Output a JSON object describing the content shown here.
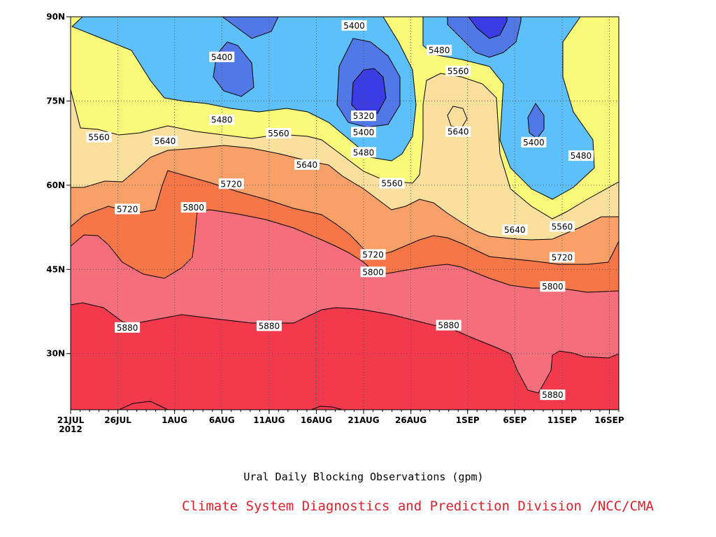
{
  "title": "Ural Daily Blocking Observations (gpm)",
  "credit": "Climate System Diagnostics and Prediction Division /NCC/CMA",
  "chart_data": {
    "type": "contour",
    "variable_unit": "gpm",
    "x_axis": {
      "start": "2012-07-21",
      "end": "2012-09-17",
      "tick_labels": [
        "21JUL",
        "26JUL",
        "1AUG",
        "6AUG",
        "11AUG",
        "16AUG",
        "21AUG",
        "26AUG",
        "1SEP",
        "6SEP",
        "11SEP",
        "16SEP"
      ],
      "tick_dates": [
        "2012-07-21",
        "2012-07-26",
        "2012-08-01",
        "2012-08-06",
        "2012-08-11",
        "2012-08-16",
        "2012-08-21",
        "2012-08-26",
        "2012-09-01",
        "2012-09-06",
        "2012-09-11",
        "2012-09-16"
      ],
      "year_label": "2012"
    },
    "y_axis": {
      "range": [
        20,
        90
      ],
      "ticks": [
        30,
        45,
        60,
        75,
        90
      ],
      "tick_labels": [
        "30N",
        "45N",
        "60N",
        "75N",
        "90N"
      ]
    },
    "grid": true,
    "levels": [
      5320,
      5400,
      5480,
      5560,
      5640,
      5720,
      5800,
      5880
    ],
    "fill_colors": {
      "lt5320": "#3c3ce4",
      "5320-5400": "#5078e6",
      "5400-5480": "#5ec0fa",
      "5480-5560": "#fafa7a",
      "5560-5640": "#fae09c",
      "5640-5720": "#f8a068",
      "5720-5800": "#f67648",
      "5800-5880": "#f46e7c",
      "gt5880": "#f23a4c"
    },
    "contour_labels": [
      {
        "value": "5400",
        "date": "2012-08-20",
        "lat": 88.4
      },
      {
        "value": "5400",
        "date": "2012-08-06",
        "lat": 82.8
      },
      {
        "value": "5480",
        "date": "2012-08-29",
        "lat": 84.0
      },
      {
        "value": "5560",
        "date": "2012-08-31",
        "lat": 80.3
      },
      {
        "value": "5320",
        "date": "2012-08-21",
        "lat": 72.3
      },
      {
        "value": "5480",
        "date": "2012-08-06",
        "lat": 71.6
      },
      {
        "value": "5400",
        "date": "2012-08-21",
        "lat": 69.4
      },
      {
        "value": "5640",
        "date": "2012-08-31",
        "lat": 69.5
      },
      {
        "value": "5560",
        "date": "2012-07-24",
        "lat": 68.5
      },
      {
        "value": "5560",
        "date": "2012-08-12",
        "lat": 69.2
      },
      {
        "value": "5400",
        "date": "2012-09-08",
        "lat": 67.6
      },
      {
        "value": "5640",
        "date": "2012-07-31",
        "lat": 67.8
      },
      {
        "value": "5480",
        "date": "2012-08-21",
        "lat": 65.8
      },
      {
        "value": "5480",
        "date": "2012-09-13",
        "lat": 65.2
      },
      {
        "value": "5640",
        "date": "2012-08-15",
        "lat": 63.6
      },
      {
        "value": "5720",
        "date": "2012-08-07",
        "lat": 60.2
      },
      {
        "value": "5560",
        "date": "2012-08-24",
        "lat": 60.3
      },
      {
        "value": "5720",
        "date": "2012-07-27",
        "lat": 55.7
      },
      {
        "value": "5800",
        "date": "2012-08-03",
        "lat": 56.0
      },
      {
        "value": "5640",
        "date": "2012-09-06",
        "lat": 52.0
      },
      {
        "value": "5560",
        "date": "2012-09-11",
        "lat": 52.6
      },
      {
        "value": "5720",
        "date": "2012-08-22",
        "lat": 47.6
      },
      {
        "value": "5720",
        "date": "2012-09-11",
        "lat": 47.1
      },
      {
        "value": "5800",
        "date": "2012-08-22",
        "lat": 44.5
      },
      {
        "value": "5800",
        "date": "2012-09-10",
        "lat": 41.9
      },
      {
        "value": "5880",
        "date": "2012-07-27",
        "lat": 34.6
      },
      {
        "value": "5880",
        "date": "2012-08-11",
        "lat": 34.9
      },
      {
        "value": "5880",
        "date": "2012-08-30",
        "lat": 35.0
      },
      {
        "value": "5880",
        "date": "2012-09-10",
        "lat": 22.6
      }
    ]
  }
}
